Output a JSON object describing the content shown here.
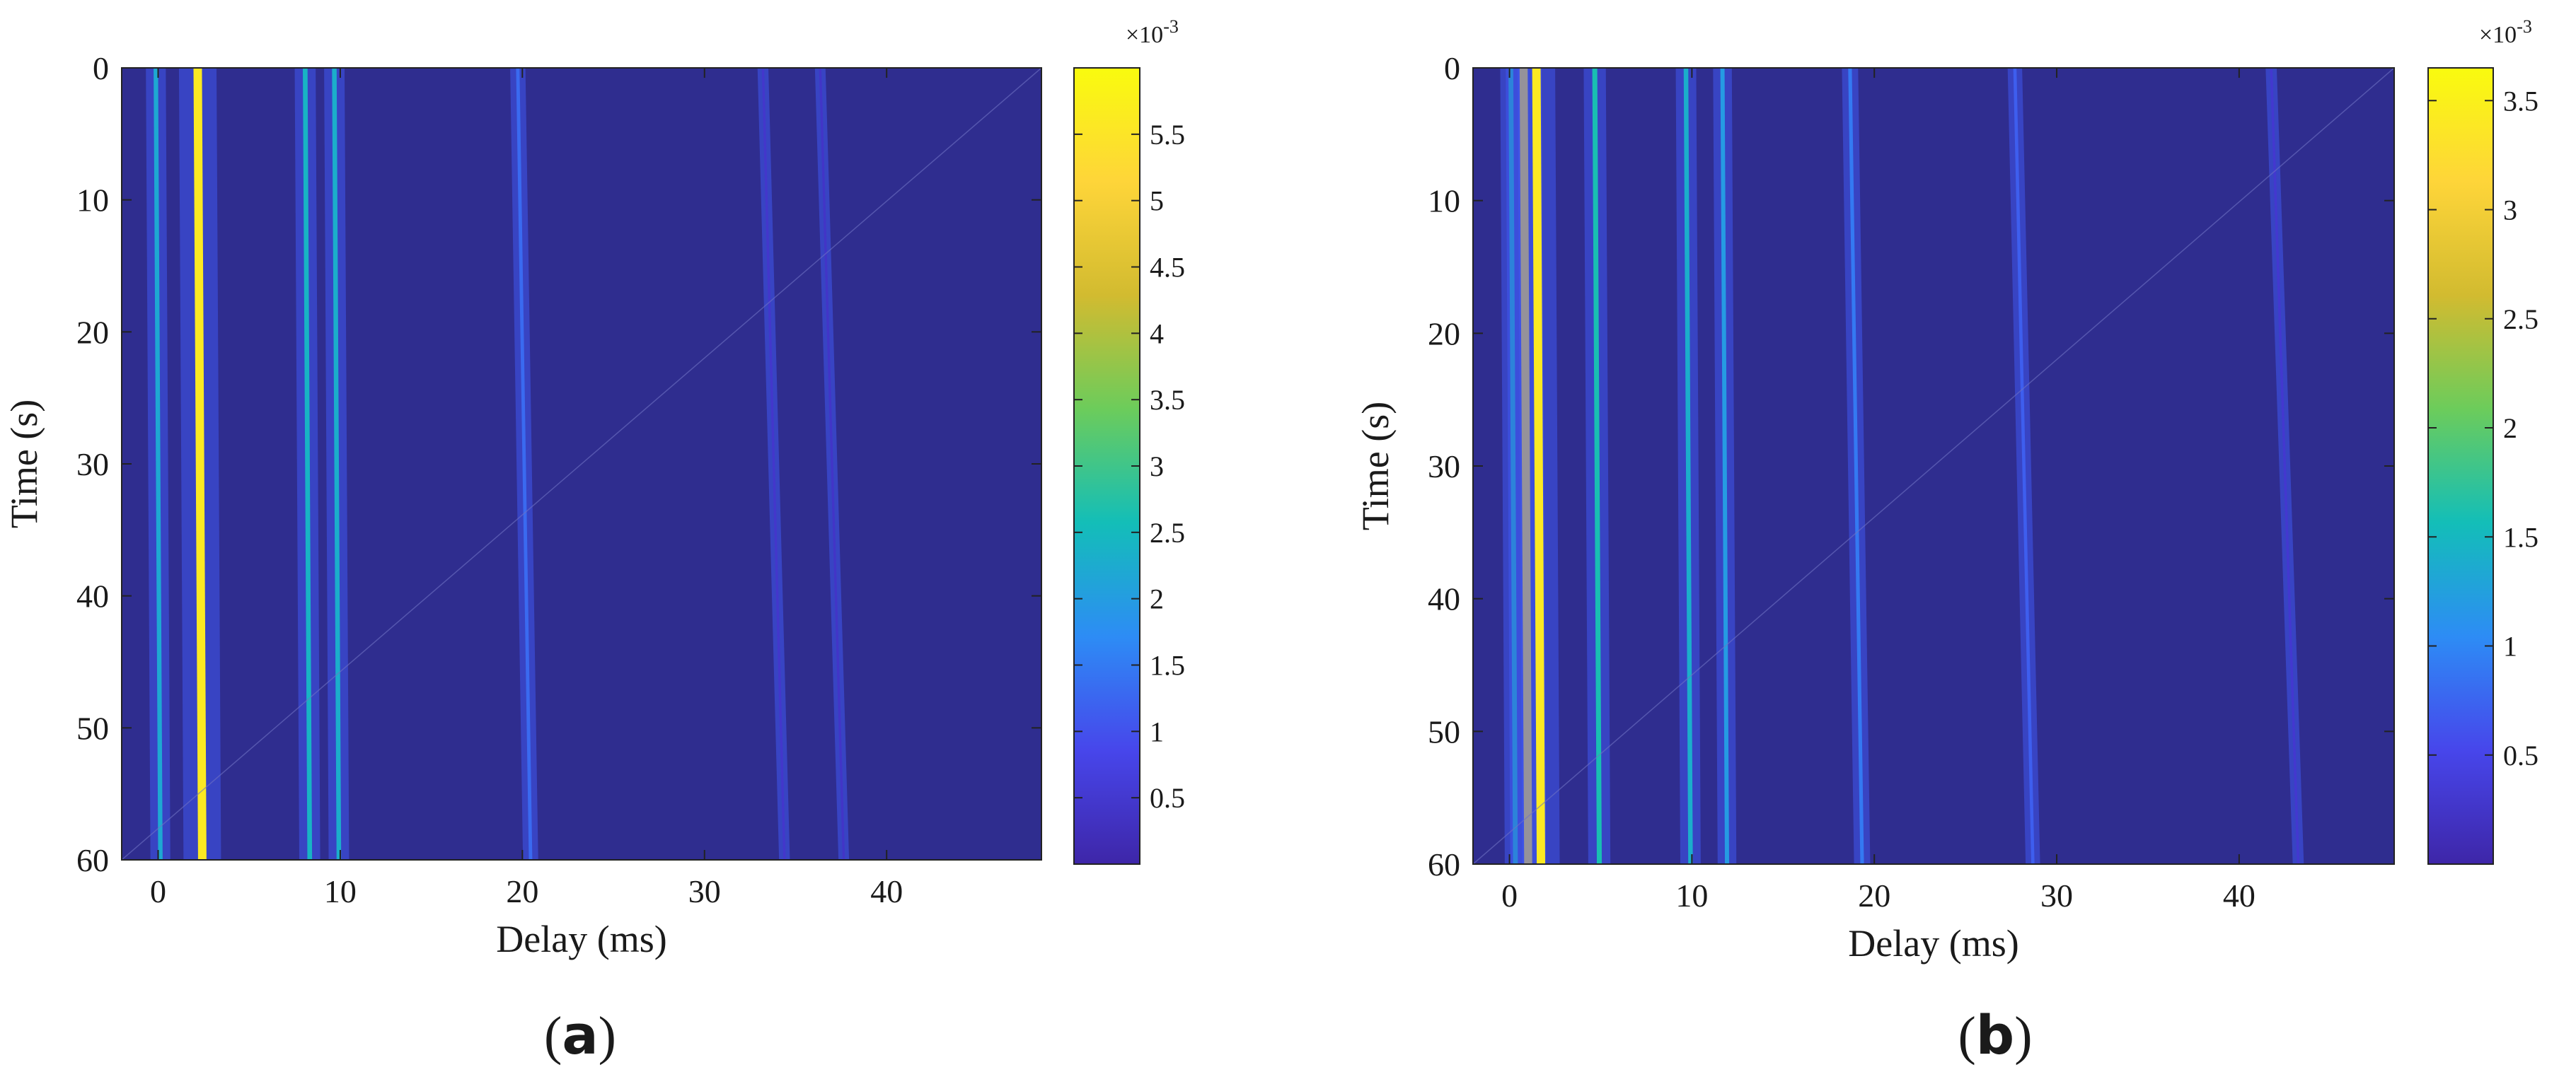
{
  "colors": {
    "background": "#2f2d8f",
    "colormap": [
      "#3e26a8",
      "#4746eb",
      "#2d8cf5",
      "#13beb8",
      "#6ccc5b",
      "#d2bb30",
      "#fed539",
      "#f9fb0e"
    ]
  },
  "chart_data": [
    {
      "type": "heatmap",
      "panel_label": "(a)",
      "panel_letter": "a",
      "xlabel": "Delay (ms)",
      "ylabel": "Time (s)",
      "xlim": [
        -2,
        48.5
      ],
      "ylim": [
        60,
        0
      ],
      "xticks": [
        0,
        10,
        20,
        30,
        40
      ],
      "yticks": [
        0,
        10,
        20,
        30,
        40,
        50,
        60
      ],
      "colorbar": {
        "min": 0,
        "max": 6.0,
        "exponent_label": "×10",
        "exponent": "-3",
        "ticks": [
          0.5,
          1,
          1.5,
          2,
          2.5,
          3,
          3.5,
          4,
          4.5,
          5,
          5.5
        ],
        "tick_labels": [
          "0.5",
          "1",
          "1.5",
          "2",
          "2.5",
          "3",
          "3.5",
          "4",
          "4.5",
          "5",
          "5.5"
        ]
      },
      "paths": [
        {
          "delay_ms": 0.0,
          "peak_1e3": 2.2
        },
        {
          "delay_ms": 2.3,
          "peak_1e3": 5.6
        },
        {
          "delay_ms": 8.2,
          "peak_1e3": 2.4
        },
        {
          "delay_ms": 9.8,
          "peak_1e3": 2.3
        },
        {
          "delay_ms": 20.1,
          "peak_1e3": 1.3
        },
        {
          "delay_ms": 33.8,
          "peak_1e3": 0.45
        },
        {
          "delay_ms": 37.0,
          "peak_1e3": 0.4
        }
      ]
    },
    {
      "type": "heatmap",
      "panel_label": "(b)",
      "panel_letter": "b",
      "xlabel": "Delay (ms)",
      "ylabel": "Time (s)",
      "xlim": [
        -2,
        48.5
      ],
      "ylim": [
        60,
        0
      ],
      "xticks": [
        0,
        10,
        20,
        30,
        40
      ],
      "yticks": [
        0,
        10,
        20,
        30,
        40,
        50,
        60
      ],
      "colorbar": {
        "min": 0,
        "max": 3.65,
        "exponent_label": "×10",
        "exponent": "-3",
        "ticks": [
          0.5,
          1,
          1.5,
          2,
          2.5,
          3,
          3.5
        ],
        "tick_labels": [
          "0.5",
          "1",
          "1.5",
          "2",
          "2.5",
          "3",
          "3.5"
        ]
      },
      "paths": [
        {
          "delay_ms": 0.2,
          "peak_1e3": 1.5
        },
        {
          "delay_ms": 0.9,
          "peak_1e3": 3.2
        },
        {
          "delay_ms": 1.6,
          "peak_1e3": 3.4
        },
        {
          "delay_ms": 4.8,
          "peak_1e3": 1.6
        },
        {
          "delay_ms": 9.8,
          "peak_1e3": 1.4
        },
        {
          "delay_ms": 11.8,
          "peak_1e3": 1.2
        },
        {
          "delay_ms": 19.0,
          "peak_1e3": 0.9
        },
        {
          "delay_ms": 28.2,
          "peak_1e3": 0.7
        },
        {
          "delay_ms": 42.5,
          "peak_1e3": 0.3
        }
      ]
    }
  ]
}
